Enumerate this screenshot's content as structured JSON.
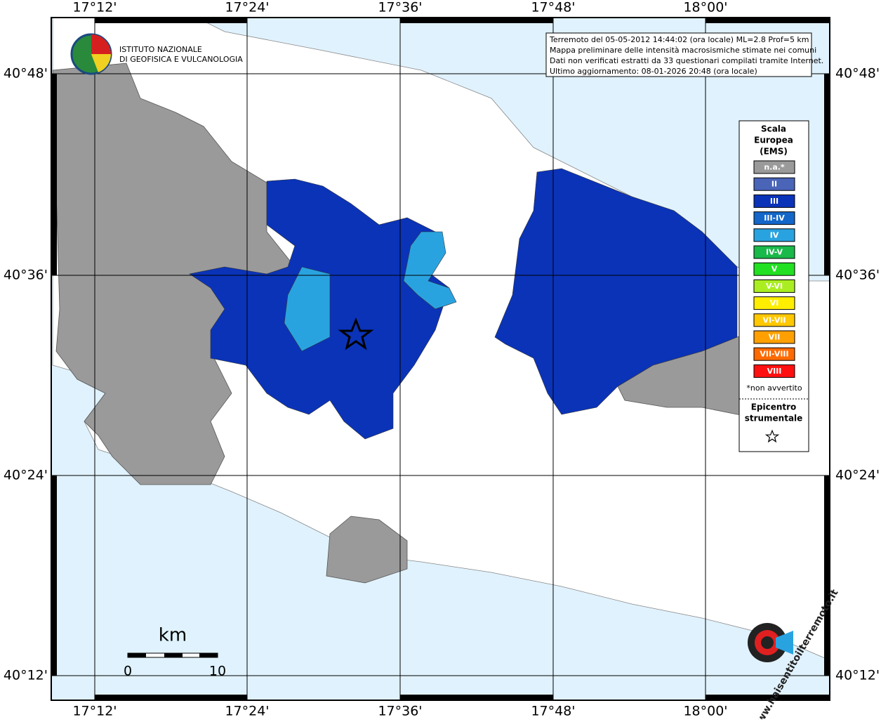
{
  "map": {
    "lon_labels": [
      "17°12'",
      "17°24'",
      "17°36'",
      "17°48'",
      "18°00'"
    ],
    "lat_labels": [
      "40°48'",
      "40°36'",
      "40°24'",
      "40°12'"
    ],
    "logo": [
      "ISTITUTO NAZIONALE",
      "DI GEOFISICA E VULCANOLOGIA"
    ],
    "info": [
      "Terremoto del 05-05-2012 14:44:02 (ora locale) ML=2.8 Prof=5 km",
      "Mappa preliminare delle intensità macrosismiche stimate nei comuni",
      "Dati non verificati estratti da 33 questionari compilati tramite Internet.",
      "Ultimo aggiornamento: 08-01-2026 20:48 (ora locale)"
    ],
    "legend": {
      "title": [
        "Scala",
        "Europea",
        "(EMS)"
      ],
      "items": [
        {
          "label": "n.a.*",
          "color": "#9a9a9a"
        },
        {
          "label": "II",
          "color": "#4a64b8"
        },
        {
          "label": "III",
          "color": "#0a33b8"
        },
        {
          "label": "III-IV",
          "color": "#1466c8"
        },
        {
          "label": "IV",
          "color": "#29a3e0"
        },
        {
          "label": "IV-V",
          "color": "#19b94a"
        },
        {
          "label": "V",
          "color": "#22e022"
        },
        {
          "label": "V-VI",
          "color": "#aaee22"
        },
        {
          "label": "VI",
          "color": "#ffee00"
        },
        {
          "label": "VI-VII",
          "color": "#ffc800"
        },
        {
          "label": "VII",
          "color": "#ffa000"
        },
        {
          "label": "VII-VIII",
          "color": "#ff6a00"
        },
        {
          "label": "VIII",
          "color": "#ff1010"
        }
      ],
      "note": "*non avvertito",
      "epicentre": [
        "Epicentro",
        "strumentale"
      ]
    },
    "scale": {
      "unit": "km",
      "start": "0",
      "end": "10"
    },
    "brand": "www.haisentitoilterremoto.it"
  }
}
